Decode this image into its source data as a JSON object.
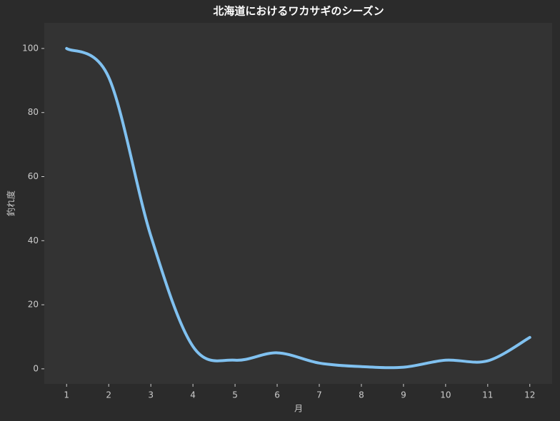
{
  "chart_data": {
    "type": "line",
    "title": "北海道におけるワカサギのシーズン",
    "x_label": "月",
    "y_label": "釣れ度",
    "x": [
      1,
      2,
      3,
      4,
      5,
      6,
      7,
      8,
      9,
      10,
      11,
      12
    ],
    "series": [
      {
        "name": "釣れ度",
        "color": "#80c1f0",
        "values": [
          100,
          91,
          41.5,
          7,
          2.7,
          5,
          1.8,
          0.7,
          0.5,
          2.7,
          2.5,
          9.8
        ]
      }
    ],
    "xlim": [
      0.47,
      12.53
    ],
    "ylim": [
      -4.7,
      108
    ],
    "xticks": [
      1,
      2,
      3,
      4,
      5,
      6,
      7,
      8,
      9,
      10,
      11,
      12
    ],
    "yticks": [
      0,
      20,
      40,
      60,
      80,
      100
    ],
    "smooth": true,
    "grid": false
  }
}
